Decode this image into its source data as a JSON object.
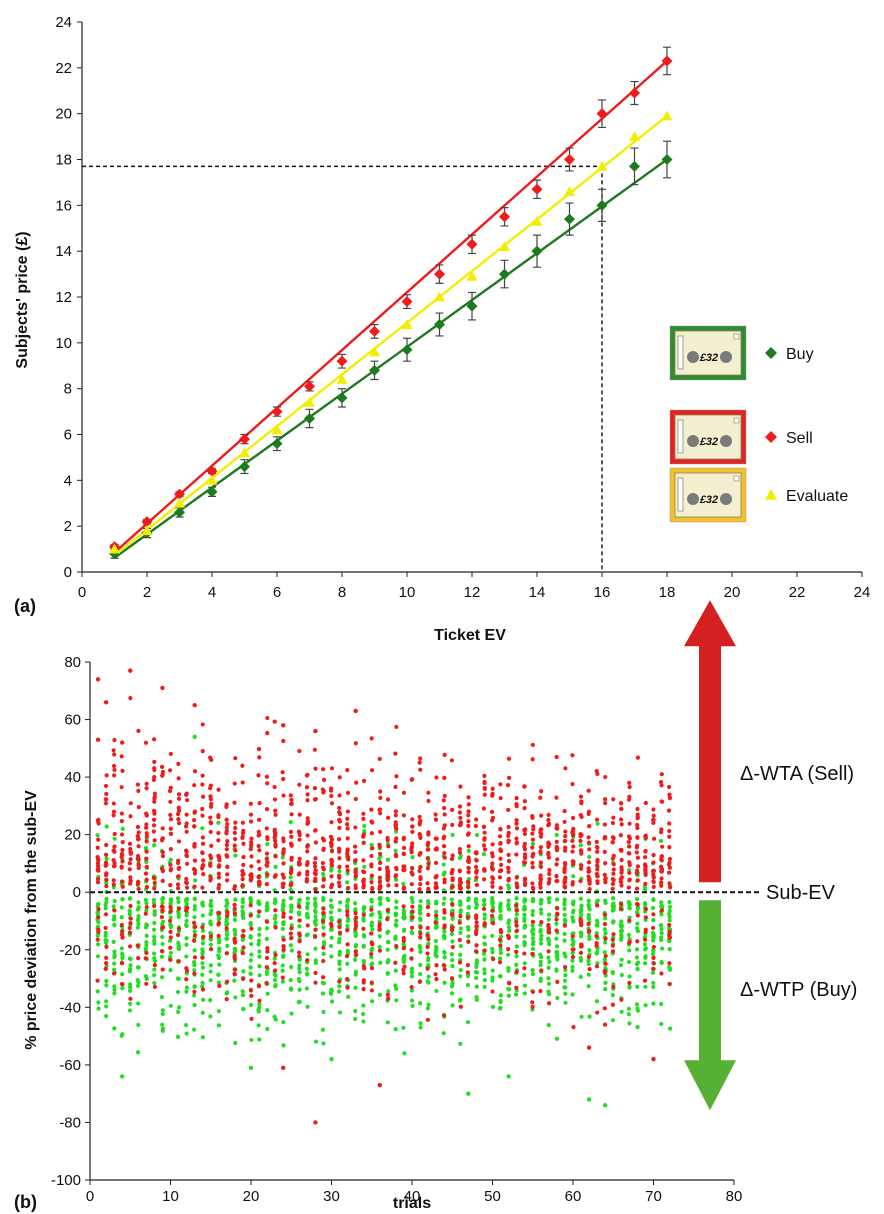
{
  "panels": [
    {
      "label": "(a)"
    },
    {
      "label": "(b)"
    }
  ],
  "chart_data": [
    {
      "type": "line",
      "panel": "(a)",
      "xlabel": "Ticket EV",
      "ylabel": "Subjects' price (£)",
      "xlim": [
        0,
        24
      ],
      "ylim": [
        0,
        24
      ],
      "xticks": [
        0,
        2,
        4,
        6,
        8,
        10,
        12,
        14,
        16,
        18,
        20,
        22,
        24
      ],
      "yticks": [
        0,
        2,
        4,
        6,
        8,
        10,
        12,
        14,
        16,
        18,
        20,
        22,
        24
      ],
      "grid": false,
      "legend": "right",
      "x": [
        1,
        2,
        3,
        4,
        5,
        6,
        7,
        8,
        9,
        10,
        11,
        12,
        13,
        14,
        15,
        16,
        17,
        18
      ],
      "series": [
        {
          "name": "Buy",
          "marker": "diamond",
          "color": "#1e7a1e",
          "values": [
            0.8,
            1.7,
            2.6,
            3.5,
            4.6,
            5.6,
            6.7,
            7.6,
            8.8,
            9.7,
            10.8,
            11.6,
            13.0,
            14.0,
            15.4,
            16.0,
            17.7,
            18.0
          ],
          "errors": [
            0.2,
            0.2,
            0.2,
            0.2,
            0.3,
            0.3,
            0.4,
            0.4,
            0.4,
            0.5,
            0.5,
            0.6,
            0.6,
            0.7,
            0.7,
            0.7,
            0.8,
            0.8
          ],
          "fit": [
            [
              1,
              0.62
            ],
            [
              18,
              18.0
            ]
          ]
        },
        {
          "name": "Sell",
          "marker": "diamond",
          "color": "#ee1c1c",
          "values": [
            1.1,
            2.2,
            3.4,
            4.4,
            5.8,
            7.0,
            8.1,
            9.2,
            10.5,
            11.8,
            13.0,
            14.3,
            15.5,
            16.7,
            18.0,
            20.0,
            20.9,
            22.3
          ],
          "errors": [
            0.1,
            0.1,
            0.1,
            0.1,
            0.2,
            0.2,
            0.2,
            0.3,
            0.3,
            0.3,
            0.4,
            0.4,
            0.4,
            0.4,
            0.5,
            0.6,
            0.5,
            0.6
          ],
          "fit": [
            [
              1,
              0.85
            ],
            [
              18,
              22.3
            ]
          ]
        },
        {
          "name": "Evaluate",
          "marker": "triangle",
          "color": "#f2ee00",
          "values": [
            1.0,
            1.8,
            3.0,
            4.0,
            5.2,
            6.2,
            7.4,
            8.4,
            9.6,
            10.8,
            12.0,
            12.9,
            14.2,
            15.3,
            16.6,
            17.7,
            19.0,
            19.9
          ],
          "fit": [
            [
              1,
              0.72
            ],
            [
              18,
              19.9
            ]
          ]
        }
      ],
      "annotation": {
        "x": 16,
        "y": 17.7
      },
      "legend_image_text": "£32"
    },
    {
      "type": "scatter",
      "panel": "(b)",
      "xlabel": "trials",
      "ylabel": "% price deviation from the sub-EV",
      "xlim": [
        0,
        80
      ],
      "ylim": [
        -100,
        80
      ],
      "xticks": [
        0,
        10,
        20,
        30,
        40,
        50,
        60,
        70,
        80
      ],
      "yticks": [
        -100,
        -80,
        -60,
        -40,
        -20,
        0,
        20,
        40,
        60,
        80
      ],
      "grid": false,
      "reference_line": {
        "y": 0,
        "label": "Sub-EV"
      },
      "series": [
        {
          "name": "Sell",
          "color": "#ee1c1c",
          "arrow_label": "Δ-WTA (Sell)",
          "arrow_color": "#d42020",
          "trials": [
            1,
            72
          ],
          "n_per_trial": 22,
          "points": [
            [
              1,
              74
            ],
            [
              1,
              53
            ],
            [
              2,
              66
            ],
            [
              4,
              52
            ],
            [
              5,
              77
            ],
            [
              9,
              71
            ],
            [
              13,
              65
            ],
            [
              24,
              58
            ],
            [
              28,
              56
            ],
            [
              33,
              63
            ],
            [
              28,
              -80
            ],
            [
              36,
              -67
            ],
            [
              24,
              -61
            ],
            [
              62,
              -54
            ],
            [
              70,
              -58
            ]
          ]
        },
        {
          "name": "Buy",
          "color": "#22dd22",
          "arrow_label": "Δ-WTP (Buy)",
          "arrow_color": "#55b033",
          "trials": [
            1,
            72
          ],
          "n_per_trial": 22,
          "points": [
            [
              4,
              -64
            ],
            [
              13,
              54
            ],
            [
              47,
              -70
            ],
            [
              52,
              -64
            ],
            [
              62,
              -72
            ],
            [
              64,
              -74
            ],
            [
              30,
              -58
            ],
            [
              20,
              -61
            ]
          ]
        }
      ]
    }
  ]
}
